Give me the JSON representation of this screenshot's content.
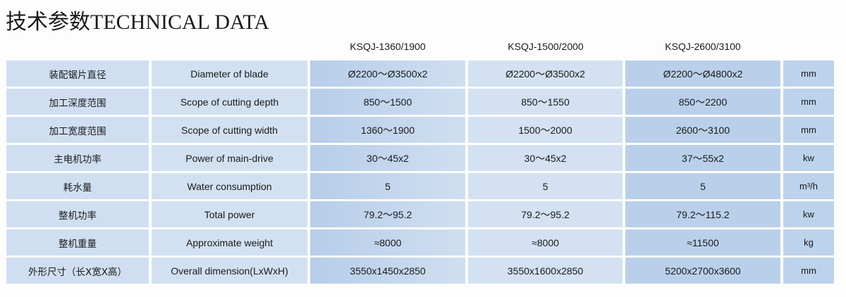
{
  "title": {
    "cn": "技术参数",
    "en": "TECHNICAL DATA"
  },
  "models": [
    "KSQJ-1360/1900",
    "KSQJ-1500/2000",
    "KSQJ-2600/3100"
  ],
  "rows": [
    {
      "cn": "装配锯片直径",
      "en": "Diameter of blade",
      "v": [
        "Ø2200～Ø3500x2",
        "Ø2200～Ø3500x2",
        "Ø2200～Ø4800x2"
      ],
      "unit": "mm"
    },
    {
      "cn": "加工深度范围",
      "en": "Scope of cutting depth",
      "v": [
        "850～1500",
        "850～1550",
        "850～2200"
      ],
      "unit": "mm"
    },
    {
      "cn": "加工宽度范围",
      "en": "Scope of cutting width",
      "v": [
        "1360～1900",
        "1500～2000",
        "2600～3100"
      ],
      "unit": "mm"
    },
    {
      "cn": "主电机功率",
      "en": "Power of main-drive",
      "v": [
        "30～45x2",
        "30～45x2",
        "37～55x2"
      ],
      "unit": "kw"
    },
    {
      "cn": "耗水量",
      "en": "Water consumption",
      "v": [
        "5",
        "5",
        "5"
      ],
      "unit": "m³/h"
    },
    {
      "cn": "整机功率",
      "en": "Total power",
      "v": [
        "79.2～95.2",
        "79.2～95.2",
        "79.2～115.2"
      ],
      "unit": "kw"
    },
    {
      "cn": "整机重量",
      "en": "Approximate weight",
      "v": [
        "≈8000",
        "≈8000",
        "≈11500"
      ],
      "unit": "kg"
    },
    {
      "cn": "外形尺寸（长X宽X高）",
      "en": "Overall dimension(LxWxH)",
      "v": [
        "3550x1450x2850",
        "3550x1600x2850",
        "5200x2700x3600"
      ],
      "unit": "mm"
    }
  ]
}
